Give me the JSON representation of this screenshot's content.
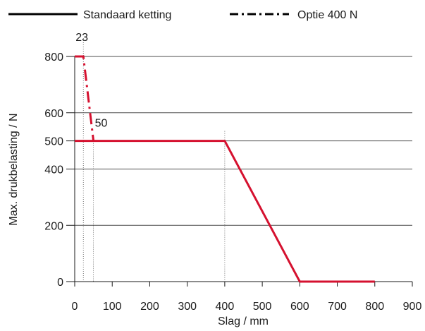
{
  "chart_data": {
    "type": "line",
    "xlabel": "Slag / mm",
    "ylabel": "Max. drukbelasting / N",
    "xlim": [
      0,
      900
    ],
    "ylim": [
      0,
      800
    ],
    "x_ticks": [
      0,
      100,
      200,
      300,
      400,
      500,
      600,
      700,
      800,
      900
    ],
    "y_ticks": [
      0,
      200,
      400,
      500,
      600,
      800
    ],
    "grid": "horizontal",
    "legend_position": "top",
    "series": [
      {
        "name": "Standaard ketting",
        "style": "solid",
        "color": "#d5112f",
        "x": [
          0,
          400,
          600,
          800
        ],
        "y": [
          500,
          500,
          0,
          0
        ]
      },
      {
        "name": "Optie 400 N",
        "style": "dash-dot",
        "color": "#d5112f",
        "x": [
          0,
          23,
          50
        ],
        "y": [
          800,
          800,
          500
        ]
      }
    ],
    "annotations": [
      {
        "text": "23",
        "x": 23,
        "y": 800
      },
      {
        "text": "50",
        "x": 50,
        "y": 500
      }
    ]
  }
}
